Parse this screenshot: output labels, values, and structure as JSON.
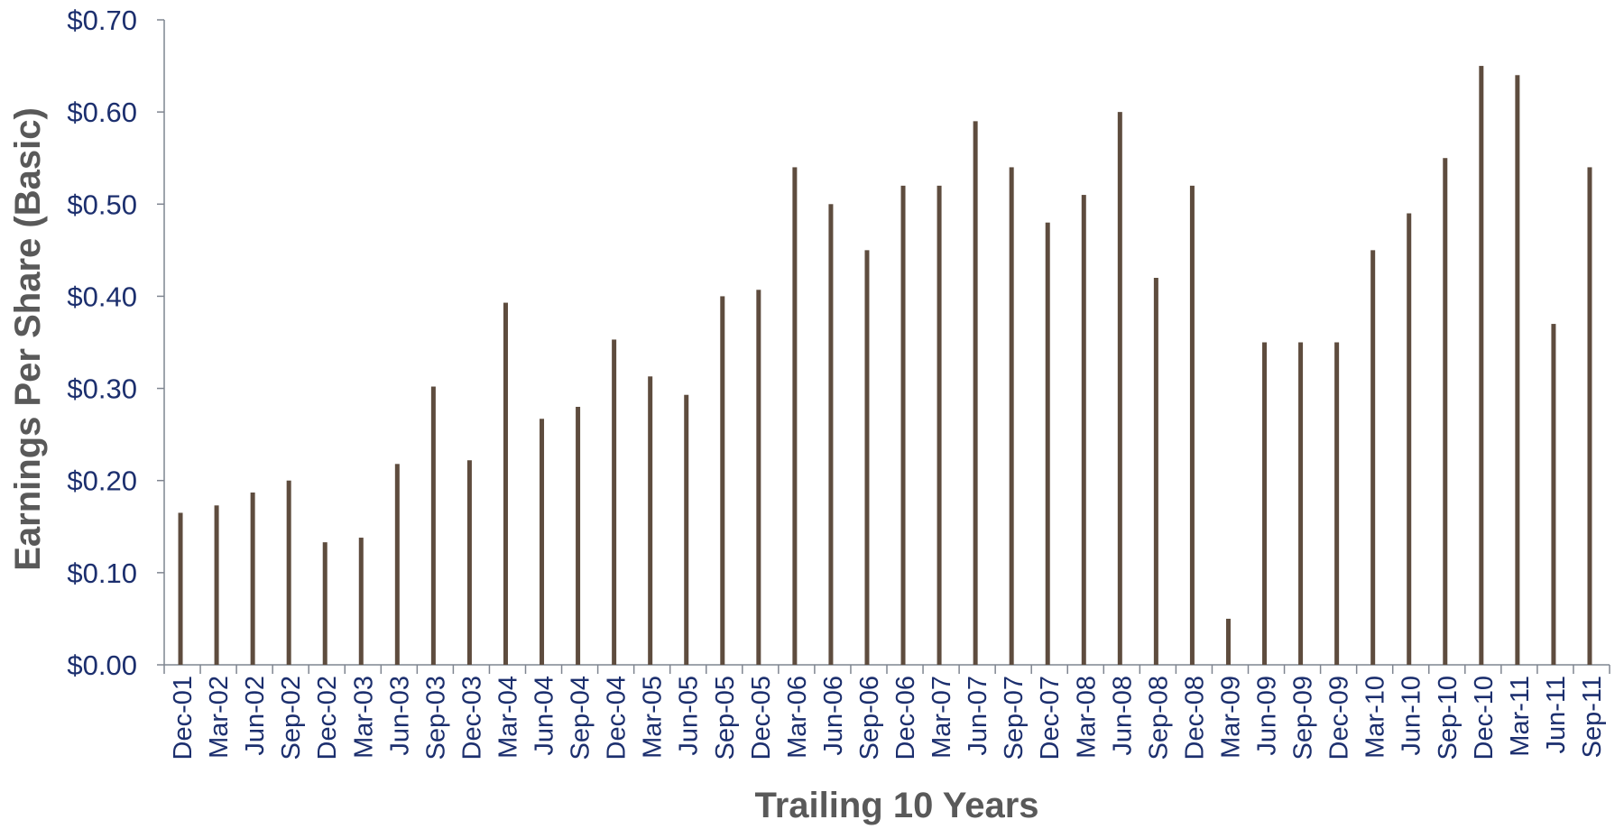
{
  "chart_data": {
    "type": "bar",
    "xlabel": "Trailing 10 Years",
    "ylabel": "Earnings Per Share (Basic)",
    "ylim": [
      0,
      0.7
    ],
    "yticks": [
      "$0.00",
      "$0.10",
      "$0.20",
      "$0.30",
      "$0.40",
      "$0.50",
      "$0.60",
      "$0.70"
    ],
    "grid": false,
    "bar_color": "#5e4c3e",
    "categories": [
      "Dec-01",
      "Mar-02",
      "Jun-02",
      "Sep-02",
      "Dec-02",
      "Mar-03",
      "Jun-03",
      "Sep-03",
      "Dec-03",
      "Mar-04",
      "Jun-04",
      "Sep-04",
      "Dec-04",
      "Mar-05",
      "Jun-05",
      "Sep-05",
      "Dec-05",
      "Mar-06",
      "Jun-06",
      "Sep-06",
      "Dec-06",
      "Mar-07",
      "Jun-07",
      "Sep-07",
      "Dec-07",
      "Mar-08",
      "Jun-08",
      "Sep-08",
      "Dec-08",
      "Mar-09",
      "Jun-09",
      "Sep-09",
      "Dec-09",
      "Mar-10",
      "Jun-10",
      "Sep-10",
      "Dec-10",
      "Mar-11",
      "Jun-11",
      "Sep-11"
    ],
    "values": [
      0.165,
      0.173,
      0.187,
      0.2,
      0.133,
      0.138,
      0.218,
      0.302,
      0.222,
      0.393,
      0.267,
      0.28,
      0.353,
      0.313,
      0.293,
      0.4,
      0.407,
      0.54,
      0.5,
      0.45,
      0.52,
      0.52,
      0.59,
      0.54,
      0.48,
      0.51,
      0.6,
      0.42,
      0.52,
      0.05,
      0.35,
      0.35,
      0.35,
      0.45,
      0.49,
      0.55,
      0.65,
      0.64,
      0.37,
      0.54
    ]
  }
}
